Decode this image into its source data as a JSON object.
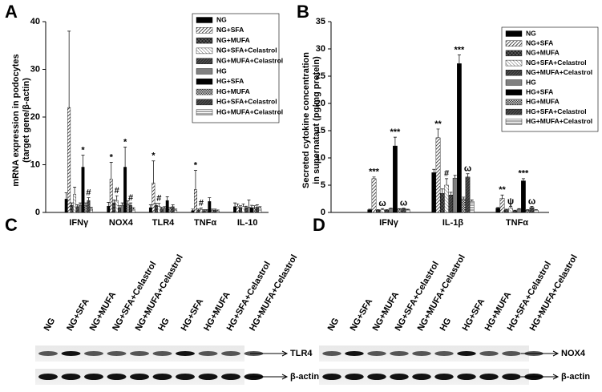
{
  "chart_data": [
    {
      "type": "bar",
      "panel_label": "A",
      "ylabel": [
        "mRNA expression in podocytes",
        "(target gene/β-actin)"
      ],
      "categories": [
        "IFNγ",
        "NOX4",
        "TLR4",
        "TNFα",
        "IL-10"
      ],
      "ylim": [
        0,
        40
      ],
      "yticks": [
        0,
        10,
        20,
        30,
        40
      ],
      "series": [
        {
          "name": "NG",
          "color": "#000000",
          "pattern": "solid",
          "values": [
            2.8,
            1.3,
            1.0,
            0.4,
            1.2
          ],
          "errors": [
            1.3,
            0.8,
            0.6,
            0.3,
            0.8
          ]
        },
        {
          "name": "NG+SFA",
          "color": "#555555",
          "pattern": "diag",
          "values": [
            22,
            7,
            6.2,
            4.8,
            1.3
          ],
          "errors": [
            16,
            3.5,
            4.6,
            4.0,
            0.5
          ]
        },
        {
          "name": "NG+MUFA",
          "color": "#333333",
          "pattern": "cross",
          "values": [
            1.5,
            2.0,
            1.5,
            0.5,
            1.0
          ],
          "errors": [
            0.5,
            0.6,
            0.4,
            0.2,
            0.4
          ]
        },
        {
          "name": "NG+SFA+Celastrol",
          "color": "#888888",
          "pattern": "diaglight",
          "values": [
            3.8,
            2.5,
            1.3,
            0.6,
            1.2
          ],
          "errors": [
            1.5,
            1.0,
            0.6,
            0.3,
            0.6
          ]
        },
        {
          "name": "NG+MUFA+Celastrol",
          "color": "#222222",
          "pattern": "diagdark",
          "values": [
            1.2,
            1.0,
            0.8,
            0.4,
            1.0
          ],
          "errors": [
            0.4,
            0.4,
            0.3,
            0.2,
            0.3
          ]
        },
        {
          "name": "HG",
          "color": "#808080",
          "pattern": "solid",
          "values": [
            1.5,
            1.5,
            0.9,
            0.4,
            1.1
          ],
          "errors": [
            0.5,
            0.5,
            0.3,
            0.2,
            1.5
          ]
        },
        {
          "name": "HG+SFA",
          "color": "#000000",
          "pattern": "solid",
          "values": [
            9.5,
            9.5,
            2.5,
            2.3,
            1.0
          ],
          "errors": [
            2.5,
            4.2,
            0.8,
            0.8,
            0.5
          ]
        },
        {
          "name": "HG+MUFA",
          "color": "#666666",
          "pattern": "check",
          "values": [
            1.5,
            1.8,
            0.8,
            0.5,
            1.0
          ],
          "errors": [
            0.5,
            0.6,
            0.3,
            0.2,
            0.4
          ]
        },
        {
          "name": "HG+SFA+Celastrol",
          "color": "#444444",
          "pattern": "diagdark",
          "values": [
            2.5,
            1.5,
            1.2,
            0.5,
            1.1
          ],
          "errors": [
            0.6,
            0.5,
            0.4,
            0.2,
            0.5
          ]
        },
        {
          "name": "HG+MUFA+Celastrol",
          "color": "#999999",
          "pattern": "horiz",
          "values": [
            0.8,
            0.7,
            0.5,
            0.3,
            0.9
          ],
          "errors": [
            0.3,
            0.3,
            0.2,
            0.2,
            0.3
          ]
        }
      ],
      "annotations": [
        {
          "text": "*",
          "category": "IFNγ",
          "series": "HG+SFA"
        },
        {
          "text": "#",
          "category": "IFNγ",
          "series": "HG+SFA+Celastrol"
        },
        {
          "text": "*",
          "category": "NOX4",
          "series": "NG+SFA"
        },
        {
          "text": "#",
          "category": "NOX4",
          "series": "NG+SFA+Celastrol"
        },
        {
          "text": "*",
          "category": "NOX4",
          "series": "HG+SFA"
        },
        {
          "text": "#",
          "category": "NOX4",
          "series": "HG+SFA+Celastrol"
        },
        {
          "text": "*",
          "category": "TLR4",
          "series": "NG+SFA"
        },
        {
          "text": "#",
          "category": "TLR4",
          "series": "NG+SFA+Celastrol"
        },
        {
          "text": "*",
          "category": "TNFα",
          "series": "NG+SFA"
        },
        {
          "text": "#",
          "category": "TNFα",
          "series": "NG+SFA+Celastrol"
        }
      ]
    },
    {
      "type": "bar",
      "panel_label": "B",
      "ylabel": [
        "Secreted cytokine concentration",
        "in supernatant (pg/mg protein)"
      ],
      "categories": [
        "IFNγ",
        "IL-1β",
        "TNFα"
      ],
      "ylim": [
        0,
        35
      ],
      "yticks": [
        0,
        5,
        10,
        15,
        20,
        25,
        30,
        35
      ],
      "series": [
        {
          "name": "NG",
          "color": "#000000",
          "pattern": "solid",
          "values": [
            0.5,
            7.3,
            0.8
          ],
          "errors": [
            0.1,
            0.6,
            0.1
          ]
        },
        {
          "name": "NG+SFA",
          "color": "#555555",
          "pattern": "diag",
          "values": [
            6.2,
            13.7,
            2.6
          ],
          "errors": [
            0.3,
            1.6,
            0.6
          ]
        },
        {
          "name": "NG+MUFA",
          "color": "#333333",
          "pattern": "cross",
          "values": [
            0.4,
            3.5,
            0.5
          ],
          "errors": [
            0.1,
            0.8,
            0.1
          ]
        },
        {
          "name": "NG+SFA+Celastrol",
          "color": "#888888",
          "pattern": "diaglight",
          "values": [
            0.5,
            5.0,
            0.8
          ],
          "errors": [
            0.2,
            1.2,
            0.3
          ]
        },
        {
          "name": "NG+MUFA+Celastrol",
          "color": "#222222",
          "pattern": "diagdark",
          "values": [
            0.4,
            3.2,
            0.3
          ],
          "errors": [
            0.1,
            0.5,
            0.1
          ]
        },
        {
          "name": "HG",
          "color": "#808080",
          "pattern": "solid",
          "values": [
            0.7,
            6.3,
            0.6
          ],
          "errors": [
            0.1,
            0.5,
            0.1
          ]
        },
        {
          "name": "HG+SFA",
          "color": "#000000",
          "pattern": "solid",
          "values": [
            12.2,
            27.3,
            5.8
          ],
          "errors": [
            1.6,
            1.6,
            0.4
          ]
        },
        {
          "name": "HG+MUFA",
          "color": "#666666",
          "pattern": "check",
          "values": [
            0.6,
            2.5,
            0.4
          ],
          "errors": [
            0.1,
            0.3,
            0.1
          ]
        },
        {
          "name": "HG+SFA+Celastrol",
          "color": "#444444",
          "pattern": "diagdark",
          "values": [
            0.7,
            6.5,
            0.9
          ],
          "errors": [
            0.1,
            0.6,
            0.2
          ]
        },
        {
          "name": "HG+MUFA+Celastrol",
          "color": "#999999",
          "pattern": "horiz",
          "values": [
            0.5,
            2.0,
            0.4
          ],
          "errors": [
            0.1,
            0.3,
            0.1
          ]
        }
      ],
      "annotations": [
        {
          "text": "***",
          "category": "IFNγ",
          "series": "NG+SFA"
        },
        {
          "text": "ω",
          "category": "IFNγ",
          "series": "NG+SFA+Celastrol"
        },
        {
          "text": "***",
          "category": "IFNγ",
          "series": "HG+SFA"
        },
        {
          "text": "ω",
          "category": "IFNγ",
          "series": "HG+SFA+Celastrol"
        },
        {
          "text": "**",
          "category": "IL-1β",
          "series": "NG+SFA"
        },
        {
          "text": "#",
          "category": "IL-1β",
          "series": "NG+SFA+Celastrol"
        },
        {
          "text": "***",
          "category": "IL-1β",
          "series": "HG+SFA"
        },
        {
          "text": "ω",
          "category": "IL-1β",
          "series": "HG+SFA+Celastrol"
        },
        {
          "text": "**",
          "category": "TNFα",
          "series": "NG+SFA"
        },
        {
          "text": "ψ",
          "category": "TNFα",
          "series": "NG+SFA+Celastrol"
        },
        {
          "text": "***",
          "category": "TNFα",
          "series": "HG+SFA"
        },
        {
          "text": "ω",
          "category": "TNFα",
          "series": "HG+SFA+Celastrol"
        }
      ]
    }
  ],
  "blots": [
    {
      "panel_label": "C",
      "lanes": [
        "NG",
        "NG+SFA",
        "NG+MUFA",
        "NG+SFA+Celastrol",
        "NG+MUFA+Celastrol",
        "HG",
        "HG+SFA",
        "HG+MUFA",
        "HG+SFA+Celastrol",
        "HG+MUFA+Celastrol"
      ],
      "bands": [
        "TLR4",
        "β-actin"
      ]
    },
    {
      "panel_label": "D",
      "lanes": [
        "NG",
        "NG+SFA",
        "NG+MUFA",
        "NG+SFA+Celastrol",
        "NG+MUFA+Celastrol",
        "HG",
        "HG+SFA",
        "HG+MUFA",
        "HG+SFA+Celastrol",
        "HG+MUFA+Celastrol"
      ],
      "bands": [
        "NOX4",
        "β-actin"
      ]
    }
  ]
}
